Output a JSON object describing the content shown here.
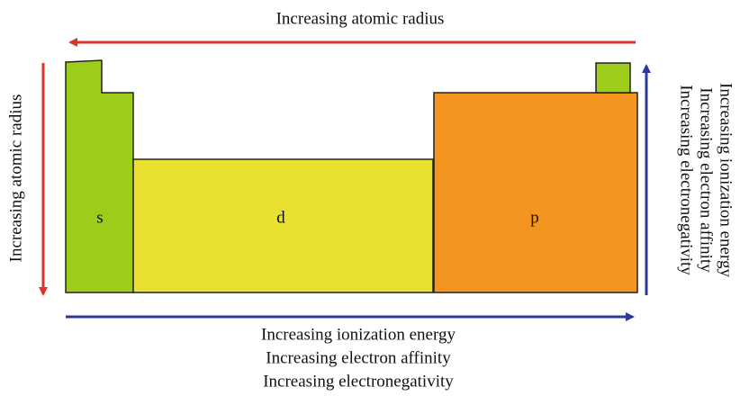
{
  "top_arrow": {
    "label": "Increasing atomic radius"
  },
  "left_arrow": {
    "label": "Increasing atomic radius"
  },
  "right_arrow": {
    "labels": [
      "Increasing ionization energy",
      "Increasing electron affinity",
      "Increasing electronegativity"
    ]
  },
  "bottom_arrow": {
    "labels": [
      "Increasing ionization energy",
      "Increasing electron affinity",
      "Increasing electronegativity"
    ]
  },
  "blocks": [
    {
      "label": "s"
    },
    {
      "label": "d"
    },
    {
      "label": "p"
    }
  ]
}
